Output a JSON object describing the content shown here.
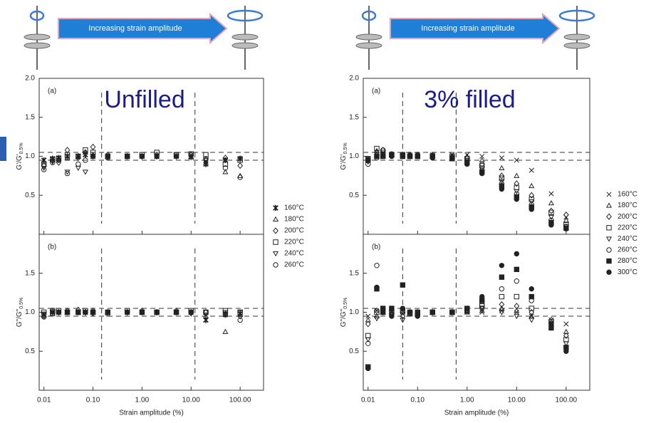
{
  "banners": [
    "Increasing strain amplitude",
    "Increasing strain amplitude"
  ],
  "chart_data": [
    {
      "type": "scatter",
      "panel_label": "(a)",
      "title": "Unfilled",
      "ylabel": "G'/G'",
      "ylabel_sub": "0.5%",
      "xscale": "log",
      "xlim": [
        0.008,
        300
      ],
      "ylim": [
        0,
        2.0
      ],
      "xticks": [
        0.01,
        0.1,
        1,
        10,
        100
      ],
      "yticks": [
        0.5,
        {
          "value": 1,
          "label": "1.0"
        },
        1.5,
        {
          "value": 2,
          "label": "2.0"
        }
      ],
      "ref_x": [
        0.15,
        12
      ],
      "ref_y": [
        0.95,
        1.05
      ],
      "x": [
        0.01,
        0.015,
        0.02,
        0.03,
        0.05,
        0.07,
        0.1,
        0.2,
        0.5,
        1,
        2,
        5,
        10,
        20,
        50,
        100
      ],
      "series": [
        {
          "name": "160°C",
          "color": "#222222",
          "marker": "asterisk",
          "values": [
            0.95,
            0.97,
            0.98,
            1.0,
            1.0,
            1.02,
            1.0,
            1.0,
            1.0,
            1.0,
            1.0,
            1.0,
            0.99,
            0.9,
            0.95,
            0.97
          ]
        },
        {
          "name": "180°C",
          "color": "#222222",
          "marker": "triangle",
          "values": [
            0.93,
            0.95,
            0.97,
            0.98,
            1.0,
            1.05,
            1.02,
            1.0,
            1.0,
            1.0,
            1.0,
            1.0,
            1.0,
            0.92,
            0.8,
            0.75
          ]
        },
        {
          "name": "200°C",
          "color": "#222222",
          "marker": "diamond",
          "values": [
            0.88,
            0.95,
            0.92,
            1.08,
            0.98,
            1.05,
            1.12,
            1.02,
            1.0,
            1.0,
            1.02,
            1.0,
            1.02,
            0.95,
            0.98,
            0.88
          ]
        },
        {
          "name": "220°C",
          "color": "#222222",
          "marker": "square",
          "values": [
            0.9,
            0.96,
            0.97,
            1.02,
            1.0,
            1.08,
            1.05,
            1.0,
            1.0,
            1.02,
            1.05,
            1.02,
            1.03,
            1.02,
            0.9,
            0.95
          ]
        },
        {
          "name": "240°C",
          "color": "#222222",
          "marker": "triangle-down",
          "values": [
            0.85,
            0.93,
            0.95,
            0.8,
            0.85,
            0.8,
            1.0,
            0.98,
            1.0,
            1.0,
            1.0,
            1.0,
            1.0,
            0.95,
            0.95,
            0.97
          ]
        },
        {
          "name": "260°C",
          "color": "#222222",
          "marker": "circle",
          "values": [
            0.83,
            0.92,
            0.95,
            0.78,
            0.9,
            0.95,
            1.0,
            0.98,
            1.0,
            1.0,
            1.0,
            1.02,
            1.02,
            0.97,
            0.85,
            0.73
          ]
        }
      ]
    },
    {
      "type": "scatter",
      "panel_label": "(b)",
      "ylabel": "G\"/G\"",
      "ylabel_sub": "0.5%",
      "xlabel": "Strain amplitude (%)",
      "xscale": "log",
      "xlim": [
        0.008,
        300
      ],
      "ylim": [
        0,
        2.0
      ],
      "xticks": [
        0.01,
        {
          "value": 0.1,
          "label": "0.10"
        },
        {
          "value": 1,
          "label": "1.00"
        },
        {
          "value": 10,
          "label": "10.00"
        },
        {
          "value": 100,
          "label": "100.00"
        }
      ],
      "yticks": [
        0.5,
        {
          "value": 1,
          "label": "1.0"
        },
        1.5
      ],
      "ref_x": [
        0.15,
        12
      ],
      "ref_y": [
        0.95,
        1.05
      ],
      "x": [
        0.01,
        0.015,
        0.02,
        0.03,
        0.05,
        0.07,
        0.1,
        0.2,
        0.5,
        1,
        2,
        5,
        10,
        20,
        50,
        100
      ],
      "series": [
        {
          "color": "#222222",
          "marker": "asterisk",
          "values": [
            0.97,
            1.0,
            1.0,
            1.0,
            1.0,
            1.0,
            1.0,
            1.0,
            1.0,
            1.0,
            1.0,
            1.0,
            1.0,
            0.9,
            0.97,
            0.98
          ]
        },
        {
          "color": "#222222",
          "marker": "triangle",
          "values": [
            0.96,
            0.98,
            1.0,
            1.0,
            1.0,
            1.0,
            1.0,
            1.0,
            1.0,
            1.0,
            1.0,
            1.0,
            1.0,
            0.95,
            0.75,
            0.97
          ]
        },
        {
          "color": "#222222",
          "marker": "diamond",
          "values": [
            0.95,
            1.02,
            1.0,
            1.02,
            1.03,
            1.0,
            1.02,
            1.0,
            1.0,
            1.02,
            1.0,
            1.02,
            1.0,
            1.0,
            0.98,
            0.95
          ]
        },
        {
          "color": "#222222",
          "marker": "square",
          "values": [
            1.0,
            1.02,
            1.02,
            1.0,
            1.0,
            1.02,
            1.0,
            1.0,
            1.02,
            1.0,
            1.0,
            1.0,
            1.02,
            1.0,
            1.02,
            1.0
          ]
        },
        {
          "color": "#222222",
          "marker": "triangle-down",
          "values": [
            0.98,
            1.0,
            1.0,
            1.0,
            1.0,
            1.0,
            0.98,
            1.0,
            1.0,
            1.0,
            1.0,
            1.0,
            0.98,
            0.97,
            1.0,
            1.0
          ]
        },
        {
          "color": "#222222",
          "marker": "circle",
          "values": [
            0.94,
            0.98,
            1.0,
            1.0,
            1.0,
            1.0,
            1.0,
            0.98,
            1.0,
            1.0,
            1.0,
            1.0,
            1.0,
            1.0,
            0.97,
            0.9
          ]
        }
      ]
    },
    {
      "type": "scatter",
      "panel_label": "(a)",
      "title": "3% filled",
      "ylabel": "G'/G'",
      "ylabel_sub": "0.5%",
      "xscale": "log",
      "xlim": [
        0.008,
        300
      ],
      "ylim": [
        0,
        2.0
      ],
      "xticks": [
        0.01,
        0.1,
        1,
        10,
        100
      ],
      "yticks": [
        0.5,
        {
          "value": 1,
          "label": "1.0"
        },
        1.5,
        {
          "value": 2,
          "label": "2.0"
        }
      ],
      "ref_x": [
        0.05,
        0.6
      ],
      "ref_y": [
        0.95,
        1.05
      ],
      "x": [
        0.01,
        0.015,
        0.02,
        0.03,
        0.05,
        0.07,
        0.1,
        0.2,
        0.5,
        1,
        2,
        5,
        10,
        20,
        50,
        100
      ],
      "series": [
        {
          "name": "160°C",
          "color": "#222222",
          "marker": "x",
          "values": [
            0.97,
            1.05,
            1.03,
            1.02,
            1.02,
            1.02,
            1.02,
            1.02,
            1.02,
            1.02,
            1.0,
            0.98,
            0.95,
            0.82,
            0.52,
            0.22
          ]
        },
        {
          "name": "180°C",
          "color": "#222222",
          "marker": "triangle",
          "values": [
            0.97,
            1.07,
            1.03,
            1.02,
            1.02,
            1.02,
            1.02,
            1.02,
            1.0,
            1.0,
            0.95,
            0.85,
            0.75,
            0.62,
            0.4,
            0.18
          ]
        },
        {
          "name": "200°C",
          "color": "#222222",
          "marker": "diamond",
          "values": [
            0.95,
            1.05,
            1.08,
            1.02,
            1.02,
            1.02,
            1.02,
            1.0,
            1.0,
            0.98,
            0.9,
            0.75,
            0.65,
            0.5,
            0.3,
            0.25
          ]
        },
        {
          "name": "220°C",
          "color": "#222222",
          "marker": "square",
          "values": [
            0.97,
            1.1,
            1.05,
            1.02,
            1.02,
            1.0,
            1.0,
            1.0,
            1.0,
            0.97,
            0.88,
            0.72,
            0.6,
            0.45,
            0.28,
            0.12
          ]
        },
        {
          "name": "240°C",
          "color": "#222222",
          "marker": "triangle-down",
          "values": [
            0.93,
            1.0,
            1.02,
            1.02,
            1.0,
            1.0,
            1.0,
            1.0,
            0.98,
            0.95,
            0.85,
            0.68,
            0.55,
            0.42,
            0.22,
            0.1
          ]
        },
        {
          "name": "260°C",
          "color": "#222222",
          "marker": "circle",
          "values": [
            0.9,
            0.98,
            1.08,
            1.03,
            1.02,
            1.0,
            1.0,
            1.0,
            0.98,
            0.93,
            0.82,
            0.65,
            0.52,
            0.38,
            0.18,
            0.1
          ]
        },
        {
          "name": "280°C",
          "color": "#222222",
          "marker": "filled-square",
          "values": [
            0.95,
            1.0,
            1.0,
            1.02,
            1.0,
            1.0,
            1.0,
            1.0,
            0.97,
            0.92,
            0.8,
            0.62,
            0.48,
            0.35,
            0.15,
            0.08
          ]
        },
        {
          "name": "300°C",
          "color": "#222222",
          "marker": "filled-circle",
          "values": [
            0.95,
            1.0,
            1.0,
            1.0,
            1.0,
            1.0,
            1.0,
            0.98,
            0.97,
            0.9,
            0.78,
            0.58,
            0.45,
            0.32,
            0.12,
            0.07
          ]
        }
      ]
    },
    {
      "type": "scatter",
      "panel_label": "(b)",
      "ylabel": "G\"/G\"",
      "ylabel_sub": "0.5%",
      "xlabel": "Strain amplitude (%)",
      "xscale": "log",
      "xlim": [
        0.008,
        300
      ],
      "ylim": [
        0,
        2.0
      ],
      "xticks": [
        0.01,
        {
          "value": 0.1,
          "label": "0.10"
        },
        {
          "value": 1,
          "label": "1.00"
        },
        {
          "value": 10,
          "label": "10.00"
        },
        {
          "value": 100,
          "label": "100.00"
        }
      ],
      "yticks": [
        0.5,
        {
          "value": 1,
          "label": "1.0"
        },
        1.5
      ],
      "ref_x": [
        0.05,
        0.6
      ],
      "ref_y": [
        0.95,
        1.05
      ],
      "x": [
        0.01,
        0.015,
        0.02,
        0.03,
        0.05,
        0.07,
        0.1,
        0.2,
        0.5,
        1,
        2,
        5,
        10,
        20,
        50,
        100
      ],
      "series": [
        {
          "color": "#222222",
          "marker": "x",
          "values": [
            0.95,
            1.02,
            1.0,
            1.0,
            0.98,
            1.0,
            1.0,
            1.0,
            1.0,
            1.0,
            1.0,
            1.02,
            1.0,
            0.95,
            0.9,
            0.85
          ]
        },
        {
          "color": "#222222",
          "marker": "triangle",
          "values": [
            0.9,
            0.95,
            1.0,
            1.0,
            1.0,
            0.98,
            1.0,
            1.0,
            1.0,
            1.0,
            1.02,
            1.05,
            1.02,
            0.95,
            0.85,
            0.75
          ]
        },
        {
          "color": "#222222",
          "marker": "diamond",
          "values": [
            0.85,
            1.02,
            1.0,
            0.98,
            0.95,
            1.0,
            1.0,
            1.0,
            1.0,
            1.02,
            1.05,
            1.1,
            1.08,
            1.0,
            0.9,
            0.7
          ]
        },
        {
          "color": "#222222",
          "marker": "square",
          "values": [
            0.7,
            1.0,
            1.05,
            1.0,
            1.02,
            0.98,
            1.0,
            1.0,
            1.0,
            1.02,
            1.08,
            1.2,
            1.2,
            1.05,
            0.88,
            0.65
          ]
        },
        {
          "color": "#222222",
          "marker": "triangle-down",
          "values": [
            0.65,
            0.92,
            1.0,
            0.95,
            0.9,
            0.98,
            0.95,
            1.0,
            1.0,
            1.02,
            1.05,
            1.0,
            0.95,
            0.9,
            0.8,
            0.6
          ]
        },
        {
          "color": "#222222",
          "marker": "circle",
          "values": [
            0.6,
            1.6,
            1.05,
            1.02,
            1.0,
            1.0,
            1.0,
            1.0,
            1.0,
            1.02,
            1.1,
            1.3,
            1.4,
            1.15,
            0.85,
            0.55
          ]
        },
        {
          "color": "#222222",
          "marker": "filled-square",
          "values": [
            0.3,
            1.3,
            1.0,
            1.05,
            1.35,
            1.0,
            0.98,
            1.0,
            1.0,
            1.05,
            1.15,
            1.45,
            1.55,
            1.2,
            0.8,
            0.55
          ]
        },
        {
          "color": "#222222",
          "marker": "filled-circle",
          "values": [
            0.28,
            1.32,
            1.05,
            0.95,
            1.05,
            1.0,
            0.95,
            1.0,
            1.0,
            1.05,
            1.2,
            1.6,
            1.75,
            1.3,
            0.85,
            0.5
          ]
        }
      ]
    }
  ]
}
